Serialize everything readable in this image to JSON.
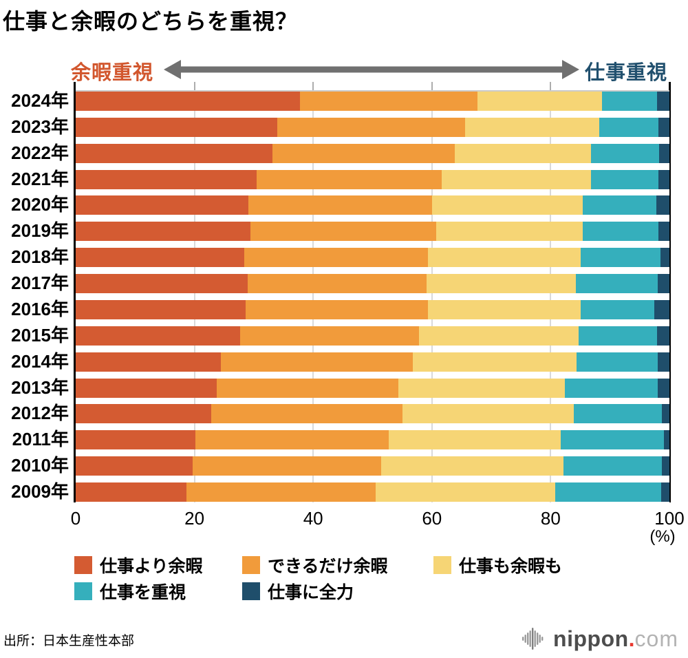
{
  "title": "仕事と余暇のどちらを重視？",
  "axis_header": {
    "left_label": "余暇重視",
    "right_label": "仕事重視",
    "arrow_color": "#707070",
    "left_color": "#D2572E",
    "right_color": "#21506E"
  },
  "chart_data": {
    "type": "bar",
    "orientation": "horizontal",
    "stacked": true,
    "title": "仕事と余暇のどちらを重視？",
    "categories": [
      "2024年",
      "2023年",
      "2022年",
      "2021年",
      "2020年",
      "2019年",
      "2018年",
      "2017年",
      "2016年",
      "2015年",
      "2014年",
      "2013年",
      "2012年",
      "2011年",
      "2010年",
      "2009年"
    ],
    "series": [
      {
        "name": "仕事より余暇",
        "color": "#D45B32",
        "values": [
          37.8,
          34.0,
          33.1,
          30.5,
          29.1,
          29.4,
          28.4,
          29.0,
          28.6,
          27.7,
          24.4,
          23.8,
          22.8,
          20.2,
          19.7,
          18.6
        ]
      },
      {
        "name": "できるだけ余暇",
        "color": "#F19B3B",
        "values": [
          29.9,
          31.6,
          30.8,
          31.2,
          30.9,
          31.3,
          30.9,
          30.1,
          30.7,
          30.1,
          32.4,
          30.6,
          32.2,
          32.5,
          31.7,
          31.9
        ]
      },
      {
        "name": "仕事も余暇も",
        "color": "#F6D575",
        "values": [
          20.9,
          22.6,
          22.9,
          25.1,
          25.4,
          24.7,
          25.7,
          25.1,
          25.8,
          26.9,
          27.6,
          28.0,
          28.9,
          29.0,
          30.8,
          30.3
        ]
      },
      {
        "name": "仕事を重視",
        "color": "#35AFBC",
        "values": [
          9.3,
          10.0,
          11.5,
          11.3,
          12.4,
          12.8,
          13.5,
          13.8,
          12.4,
          13.2,
          13.6,
          15.6,
          14.8,
          17.4,
          16.5,
          17.8
        ]
      },
      {
        "name": "仕事に全力",
        "color": "#1F4E6B",
        "values": [
          2.1,
          1.8,
          1.7,
          1.9,
          2.2,
          1.8,
          1.5,
          2.0,
          2.5,
          2.1,
          2.0,
          2.0,
          1.3,
          0.9,
          1.3,
          1.4
        ]
      }
    ],
    "x_ticks": [
      0,
      20,
      40,
      60,
      80,
      100
    ],
    "xlim": [
      0,
      100
    ],
    "x_unit": "(%)",
    "grid": true,
    "legend_position": "bottom"
  },
  "footer": {
    "source": "出所：日本生産性本部"
  },
  "logo": {
    "text_main": "nippon",
    "text_dot": ".",
    "text_suffix": "com"
  }
}
